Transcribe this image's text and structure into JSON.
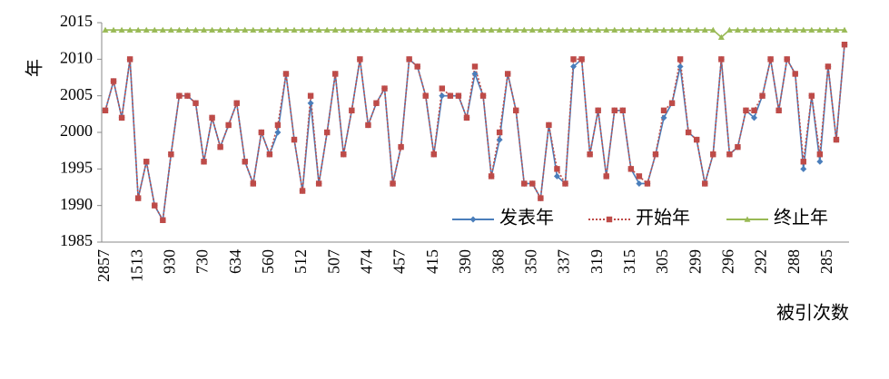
{
  "chart_data": {
    "type": "line",
    "ylabel": "年",
    "xlabel": "被引次数",
    "categories": [
      "2857",
      null,
      null,
      null,
      "1513",
      null,
      null,
      null,
      "930",
      null,
      null,
      null,
      "730",
      null,
      null,
      null,
      "634",
      null,
      null,
      null,
      "560",
      null,
      null,
      null,
      "512",
      null,
      null,
      null,
      "507",
      null,
      null,
      null,
      "474",
      null,
      null,
      null,
      "457",
      null,
      null,
      null,
      "415",
      null,
      null,
      null,
      "390",
      null,
      null,
      null,
      "368",
      null,
      null,
      null,
      "350",
      null,
      null,
      null,
      "337",
      null,
      null,
      null,
      "319",
      null,
      null,
      null,
      "315",
      null,
      null,
      null,
      "305",
      null,
      null,
      null,
      "299",
      null,
      null,
      null,
      "296",
      null,
      null,
      null,
      "292",
      null,
      null,
      null,
      "288",
      null,
      null,
      null,
      "285",
      null,
      null
    ],
    "series": [
      {
        "name": "发表年",
        "color": "#4a7ebb",
        "marker": "diamond",
        "dash": "solid",
        "values": [
          2003,
          2007,
          2002,
          2010,
          1991,
          1996,
          1990,
          1988,
          1997,
          2005,
          2005,
          2004,
          1996,
          2002,
          1998,
          2001,
          2004,
          1996,
          1993,
          2000,
          1997,
          2000,
          2008,
          1999,
          1992,
          2004,
          1993,
          2000,
          2008,
          1997,
          2003,
          2010,
          2001,
          2004,
          2006,
          1993,
          1998,
          2010,
          2009,
          2005,
          1997,
          2005,
          2005,
          2005,
          2002,
          2008,
          2005,
          1994,
          1999,
          2008,
          2003,
          1993,
          1993,
          1991,
          2001,
          1994,
          1993,
          2009,
          2010,
          1997,
          2003,
          1994,
          2003,
          2003,
          1995,
          1993,
          1993,
          1997,
          2002,
          2004,
          2009,
          2000,
          1999,
          1993,
          1997,
          2010,
          1997,
          1998,
          2003,
          2002,
          2005,
          2010,
          2003,
          2010,
          2008,
          1995,
          2005,
          1996,
          2009,
          1999,
          2012
        ]
      },
      {
        "name": "开始年",
        "color": "#be4b48",
        "marker": "square",
        "dash": "dotted",
        "values": [
          2003,
          2007,
          2002,
          2010,
          1991,
          1996,
          1990,
          1988,
          1997,
          2005,
          2005,
          2004,
          1996,
          2002,
          1998,
          2001,
          2004,
          1996,
          1993,
          2000,
          1997,
          2001,
          2008,
          1999,
          1992,
          2005,
          1993,
          2000,
          2008,
          1997,
          2003,
          2010,
          2001,
          2004,
          2006,
          1993,
          1998,
          2010,
          2009,
          2005,
          1997,
          2006,
          2005,
          2005,
          2002,
          2009,
          2005,
          1994,
          2000,
          2008,
          2003,
          1993,
          1993,
          1991,
          2001,
          1995,
          1993,
          2010,
          2010,
          1997,
          2003,
          1994,
          2003,
          2003,
          1995,
          1994,
          1993,
          1997,
          2003,
          2004,
          2010,
          2000,
          1999,
          1993,
          1997,
          2010,
          1997,
          1998,
          2003,
          2003,
          2005,
          2010,
          2003,
          2010,
          2008,
          1996,
          2005,
          1997,
          2009,
          1999,
          2012
        ]
      },
      {
        "name": "终止年",
        "color": "#98b954",
        "marker": "triangle",
        "dash": "solid",
        "values": [
          2014,
          2014,
          2014,
          2014,
          2014,
          2014,
          2014,
          2014,
          2014,
          2014,
          2014,
          2014,
          2014,
          2014,
          2014,
          2014,
          2014,
          2014,
          2014,
          2014,
          2014,
          2014,
          2014,
          2014,
          2014,
          2014,
          2014,
          2014,
          2014,
          2014,
          2014,
          2014,
          2014,
          2014,
          2014,
          2014,
          2014,
          2014,
          2014,
          2014,
          2014,
          2014,
          2014,
          2014,
          2014,
          2014,
          2014,
          2014,
          2014,
          2014,
          2014,
          2014,
          2014,
          2014,
          2014,
          2014,
          2014,
          2014,
          2014,
          2014,
          2014,
          2014,
          2014,
          2014,
          2014,
          2014,
          2014,
          2014,
          2014,
          2014,
          2014,
          2014,
          2014,
          2014,
          2014,
          2013,
          2014,
          2014,
          2014,
          2014,
          2014,
          2014,
          2014,
          2014,
          2014,
          2014,
          2014,
          2014,
          2014,
          2014,
          2014
        ]
      }
    ],
    "ylim": [
      1985,
      2015
    ],
    "yticks": [
      1985,
      1990,
      1995,
      2000,
      2005,
      2010,
      2015
    ],
    "grid": false,
    "legend": "lower right"
  }
}
